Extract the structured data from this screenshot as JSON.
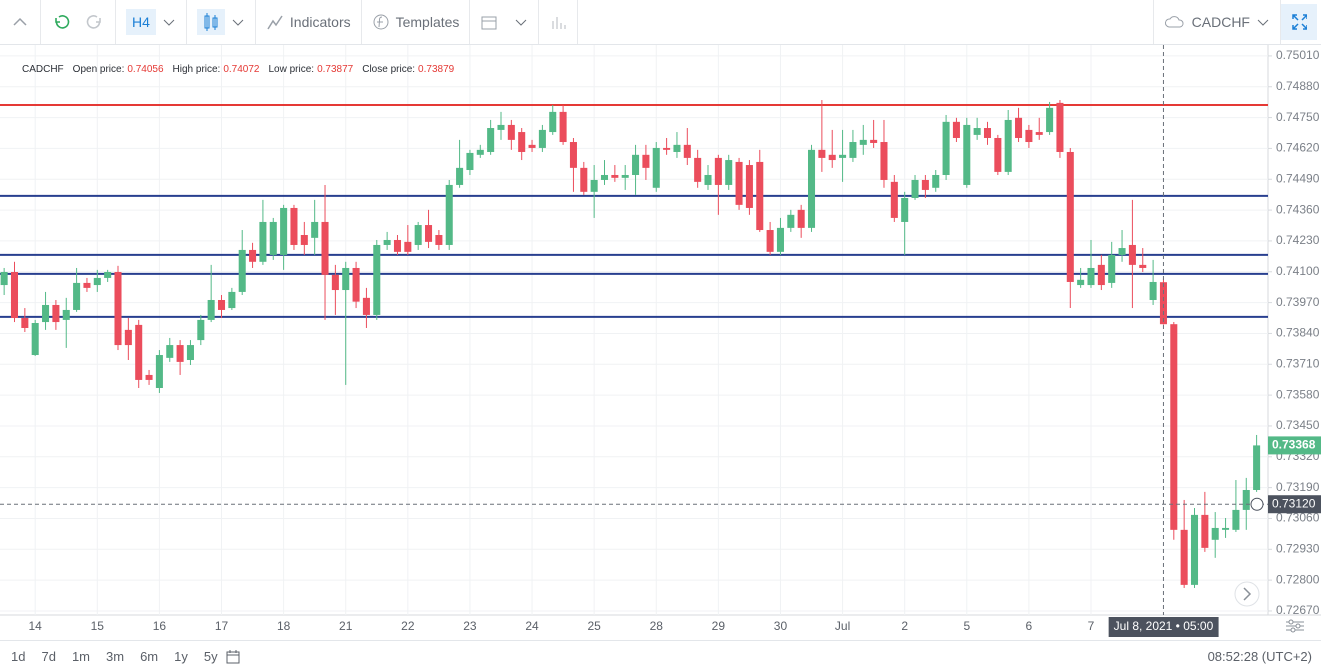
{
  "toolbar": {
    "interval": "H4",
    "indicators": "Indicators",
    "templates": "Templates",
    "symbol": "CADCHF"
  },
  "chart_data": {
    "type": "candlestick",
    "legend": {
      "symbol": "CADCHF",
      "items": [
        "Open price:",
        "High price:",
        "Low price:",
        "Close price:"
      ]
    },
    "up_color": "#53b987",
    "down_color": "#eb4d5c",
    "grid": true,
    "ylim": [
      0.72653,
      0.75056
    ],
    "yticks": [
      {
        "value": 0.7501,
        "label": "0.75010"
      },
      {
        "value": 0.7488,
        "label": "0.74880"
      },
      {
        "value": 0.7475,
        "label": "0.74750"
      },
      {
        "value": 0.7462,
        "label": "0.74620"
      },
      {
        "value": 0.7449,
        "label": "0.74490"
      },
      {
        "value": 0.7436,
        "label": "0.74360"
      },
      {
        "value": 0.7423,
        "label": "0.74230"
      },
      {
        "value": 0.741,
        "label": "0.74100"
      },
      {
        "value": 0.7397,
        "label": "0.73970"
      },
      {
        "value": 0.7384,
        "label": "0.73840"
      },
      {
        "value": 0.7371,
        "label": "0.73710"
      },
      {
        "value": 0.7358,
        "label": "0.73580"
      },
      {
        "value": 0.7345,
        "label": "0.73450"
      },
      {
        "value": 0.7332,
        "label": "0.73320"
      },
      {
        "value": 0.7319,
        "label": "0.73190"
      },
      {
        "value": 0.7306,
        "label": "0.73060"
      },
      {
        "value": 0.7293,
        "label": "0.72930"
      },
      {
        "value": 0.728,
        "label": "0.72800"
      },
      {
        "value": 0.7267,
        "label": "0.72670"
      }
    ],
    "xlim": [
      -0.4,
      122.1
    ],
    "xticks": [
      {
        "value": 3,
        "label": "14"
      },
      {
        "value": 9,
        "label": "15"
      },
      {
        "value": 15,
        "label": "16"
      },
      {
        "value": 21,
        "label": "17"
      },
      {
        "value": 27,
        "label": "18"
      },
      {
        "value": 33,
        "label": "21"
      },
      {
        "value": 39,
        "label": "22"
      },
      {
        "value": 45,
        "label": "23"
      },
      {
        "value": 51,
        "label": "24"
      },
      {
        "value": 57,
        "label": "25"
      },
      {
        "value": 63,
        "label": "28"
      },
      {
        "value": 69,
        "label": "29"
      },
      {
        "value": 75,
        "label": "30"
      },
      {
        "value": 81,
        "label": "Jul"
      },
      {
        "value": 87,
        "label": "2"
      },
      {
        "value": 93,
        "label": "5"
      },
      {
        "value": 99,
        "label": "6"
      },
      {
        "value": 105,
        "label": "7"
      }
    ],
    "hlines": [
      {
        "value": 0.74803,
        "color": "#e53935"
      },
      {
        "value": 0.7442,
        "color": "#283f8f"
      },
      {
        "value": 0.74171,
        "color": "#283f8f"
      },
      {
        "value": 0.74091,
        "color": "#283f8f"
      },
      {
        "value": 0.7391,
        "color": "#283f8f"
      }
    ],
    "crosshair": {
      "index": 112,
      "time_label": "Jul 8, 2021 • 05:00",
      "price": {
        "value": 0.7312,
        "label": "0.73120"
      }
    },
    "ohlc": [
      [
        0.74044,
        0.74116,
        0.74002,
        0.74099
      ],
      [
        0.74099,
        0.74142,
        0.73888,
        0.73905
      ],
      [
        0.73905,
        0.73947,
        0.73846,
        0.73863
      ],
      [
        0.73749,
        0.73897,
        0.73745,
        0.73884
      ],
      [
        0.73888,
        0.74015,
        0.73855,
        0.7396
      ],
      [
        0.7396,
        0.73981,
        0.73855,
        0.73888
      ],
      [
        0.73897,
        0.7399,
        0.73779,
        0.73939
      ],
      [
        0.73939,
        0.74116,
        0.73931,
        0.74053
      ],
      [
        0.74053,
        0.74074,
        0.74015,
        0.74032
      ],
      [
        0.74044,
        0.74108,
        0.74015,
        0.74074
      ],
      [
        0.74074,
        0.74108,
        0.74057,
        0.74099
      ],
      [
        0.74099,
        0.74125,
        0.7377,
        0.73791
      ],
      [
        0.73855,
        0.73905,
        0.73728,
        0.73791
      ],
      [
        0.73876,
        0.73897,
        0.7361,
        0.73644
      ],
      [
        0.73665,
        0.73686,
        0.73623,
        0.73644
      ],
      [
        0.7361,
        0.7377,
        0.73589,
        0.73749
      ],
      [
        0.73737,
        0.73821,
        0.7372,
        0.73791
      ],
      [
        0.73791,
        0.73812,
        0.73665,
        0.7372
      ],
      [
        0.73728,
        0.73812,
        0.73707,
        0.73791
      ],
      [
        0.73812,
        0.73918,
        0.73791,
        0.73897
      ],
      [
        0.73897,
        0.74129,
        0.73888,
        0.73981
      ],
      [
        0.73981,
        0.74002,
        0.73905,
        0.73939
      ],
      [
        0.73947,
        0.74032,
        0.73939,
        0.74015
      ],
      [
        0.74015,
        0.74276,
        0.74002,
        0.74192
      ],
      [
        0.74192,
        0.74222,
        0.74116,
        0.74142
      ],
      [
        0.74142,
        0.74403,
        0.74129,
        0.7431
      ],
      [
        0.74171,
        0.74327,
        0.7415,
        0.7431
      ],
      [
        0.74171,
        0.74382,
        0.74108,
        0.74369
      ],
      [
        0.74369,
        0.74382,
        0.74192,
        0.74213
      ],
      [
        0.74255,
        0.7431,
        0.74171,
        0.74213
      ],
      [
        0.74243,
        0.74403,
        0.74171,
        0.7431
      ],
      [
        0.7431,
        0.74466,
        0.73897,
        0.74087
      ],
      [
        0.74087,
        0.74129,
        0.73918,
        0.74023
      ],
      [
        0.74023,
        0.74142,
        0.73623,
        0.74116
      ],
      [
        0.74116,
        0.74142,
        0.73947,
        0.73974
      ],
      [
        0.7399,
        0.74032,
        0.73863,
        0.73918
      ],
      [
        0.73918,
        0.74234,
        0.73897,
        0.74213
      ],
      [
        0.74213,
        0.74268,
        0.74192,
        0.74234
      ],
      [
        0.74234,
        0.74255,
        0.74171,
        0.74184
      ],
      [
        0.74226,
        0.74297,
        0.74171,
        0.74184
      ],
      [
        0.74213,
        0.7431,
        0.74192,
        0.74297
      ],
      [
        0.74297,
        0.74361,
        0.742,
        0.74226
      ],
      [
        0.74255,
        0.74276,
        0.74192,
        0.74213
      ],
      [
        0.74213,
        0.74487,
        0.74192,
        0.74466
      ],
      [
        0.74466,
        0.74656,
        0.74454,
        0.74538
      ],
      [
        0.74529,
        0.74614,
        0.74508,
        0.74601
      ],
      [
        0.74593,
        0.74635,
        0.7458,
        0.74614
      ],
      [
        0.74605,
        0.7474,
        0.74593,
        0.74706
      ],
      [
        0.74698,
        0.74774,
        0.74656,
        0.74719
      ],
      [
        0.74719,
        0.7474,
        0.74614,
        0.74656
      ],
      [
        0.74689,
        0.74706,
        0.74571,
        0.74605
      ],
      [
        0.74635,
        0.74656,
        0.74605,
        0.74622
      ],
      [
        0.74622,
        0.74719,
        0.74605,
        0.74698
      ],
      [
        0.74689,
        0.74803,
        0.74677,
        0.74774
      ],
      [
        0.74774,
        0.74803,
        0.74635,
        0.74647
      ],
      [
        0.74647,
        0.74664,
        0.74437,
        0.74538
      ],
      [
        0.74538,
        0.74563,
        0.74424,
        0.74437
      ],
      [
        0.74437,
        0.7455,
        0.74327,
        0.74487
      ],
      [
        0.74487,
        0.74571,
        0.74466,
        0.74508
      ],
      [
        0.74508,
        0.7455,
        0.74479,
        0.74496
      ],
      [
        0.74496,
        0.7455,
        0.74445,
        0.74508
      ],
      [
        0.74508,
        0.74635,
        0.74424,
        0.74593
      ],
      [
        0.74593,
        0.74635,
        0.74487,
        0.74538
      ],
      [
        0.74454,
        0.74647,
        0.74437,
        0.74622
      ],
      [
        0.74622,
        0.74664,
        0.74593,
        0.74614
      ],
      [
        0.74605,
        0.74689,
        0.7458,
        0.74635
      ],
      [
        0.74635,
        0.74706,
        0.7455,
        0.7458
      ],
      [
        0.7458,
        0.74614,
        0.74454,
        0.74479
      ],
      [
        0.74466,
        0.7455,
        0.74445,
        0.74508
      ],
      [
        0.7458,
        0.74593,
        0.7434,
        0.74466
      ],
      [
        0.74466,
        0.74593,
        0.74445,
        0.74571
      ],
      [
        0.74563,
        0.7458,
        0.74361,
        0.74382
      ],
      [
        0.7455,
        0.74571,
        0.7434,
        0.74369
      ],
      [
        0.74563,
        0.74614,
        0.74268,
        0.74276
      ],
      [
        0.74276,
        0.7431,
        0.74171,
        0.74184
      ],
      [
        0.74184,
        0.74327,
        0.74171,
        0.74285
      ],
      [
        0.74285,
        0.74361,
        0.74268,
        0.7434
      ],
      [
        0.74361,
        0.74382,
        0.74243,
        0.74285
      ],
      [
        0.74285,
        0.74635,
        0.74268,
        0.74614
      ],
      [
        0.74614,
        0.74824,
        0.74521,
        0.7458
      ],
      [
        0.74593,
        0.74698,
        0.74538,
        0.74571
      ],
      [
        0.7458,
        0.74698,
        0.74479,
        0.74593
      ],
      [
        0.7458,
        0.74698,
        0.74563,
        0.74647
      ],
      [
        0.74635,
        0.74719,
        0.74593,
        0.74656
      ],
      [
        0.74656,
        0.7474,
        0.74622,
        0.74643
      ],
      [
        0.74647,
        0.7474,
        0.74454,
        0.74487
      ],
      [
        0.74479,
        0.74508,
        0.7431,
        0.74327
      ],
      [
        0.7431,
        0.74437,
        0.74171,
        0.74411
      ],
      [
        0.74411,
        0.74508,
        0.74403,
        0.74487
      ],
      [
        0.74487,
        0.74508,
        0.74411,
        0.74445
      ],
      [
        0.74454,
        0.74529,
        0.74437,
        0.74508
      ],
      [
        0.74508,
        0.74761,
        0.74487,
        0.74732
      ],
      [
        0.74732,
        0.74749,
        0.74647,
        0.74664
      ],
      [
        0.74466,
        0.74749,
        0.74454,
        0.74719
      ],
      [
        0.74677,
        0.74749,
        0.74656,
        0.74706
      ],
      [
        0.74706,
        0.74732,
        0.74635,
        0.74664
      ],
      [
        0.74664,
        0.74677,
        0.74508,
        0.74521
      ],
      [
        0.74521,
        0.74782,
        0.74508,
        0.7474
      ],
      [
        0.74749,
        0.74791,
        0.74647,
        0.74664
      ],
      [
        0.74698,
        0.74719,
        0.74622,
        0.74647
      ],
      [
        0.74689,
        0.74749,
        0.74656,
        0.74677
      ],
      [
        0.74689,
        0.74816,
        0.74677,
        0.74791
      ],
      [
        0.74812,
        0.74824,
        0.7458,
        0.74605
      ],
      [
        0.74605,
        0.74622,
        0.73947,
        0.74057
      ],
      [
        0.74044,
        0.74116,
        0.74032,
        0.74066
      ],
      [
        0.74044,
        0.74234,
        0.74032,
        0.74116
      ],
      [
        0.74129,
        0.74171,
        0.74023,
        0.74044
      ],
      [
        0.74053,
        0.74226,
        0.74032,
        0.74171
      ],
      [
        0.74171,
        0.74276,
        0.74142,
        0.742
      ],
      [
        0.74213,
        0.74403,
        0.73947,
        0.74129
      ],
      [
        0.74129,
        0.742,
        0.74099,
        0.74116
      ],
      [
        0.73981,
        0.7415,
        0.7396,
        0.74057
      ],
      [
        0.74056,
        0.74072,
        0.73877,
        0.73879
      ],
      [
        0.73879,
        0.73888,
        0.7297,
        0.73012
      ],
      [
        0.73012,
        0.73138,
        0.72767,
        0.7278
      ],
      [
        0.7278,
        0.73104,
        0.72767,
        0.73075
      ],
      [
        0.73075,
        0.73172,
        0.72919,
        0.72936
      ],
      [
        0.7297,
        0.73087,
        0.72894,
        0.7302
      ],
      [
        0.73012,
        0.73062,
        0.72978,
        0.7302
      ],
      [
        0.73012,
        0.73222,
        0.73003,
        0.73096
      ],
      [
        0.73096,
        0.73231,
        0.73012,
        0.7318
      ],
      [
        0.7318,
        0.73412,
        0.73172,
        0.73368
      ]
    ]
  },
  "bottom_bar": {
    "ranges": [
      "1d",
      "7d",
      "1m",
      "3m",
      "6m",
      "1y",
      "5y"
    ],
    "clock": "08:52:28 (UTC+2)"
  }
}
